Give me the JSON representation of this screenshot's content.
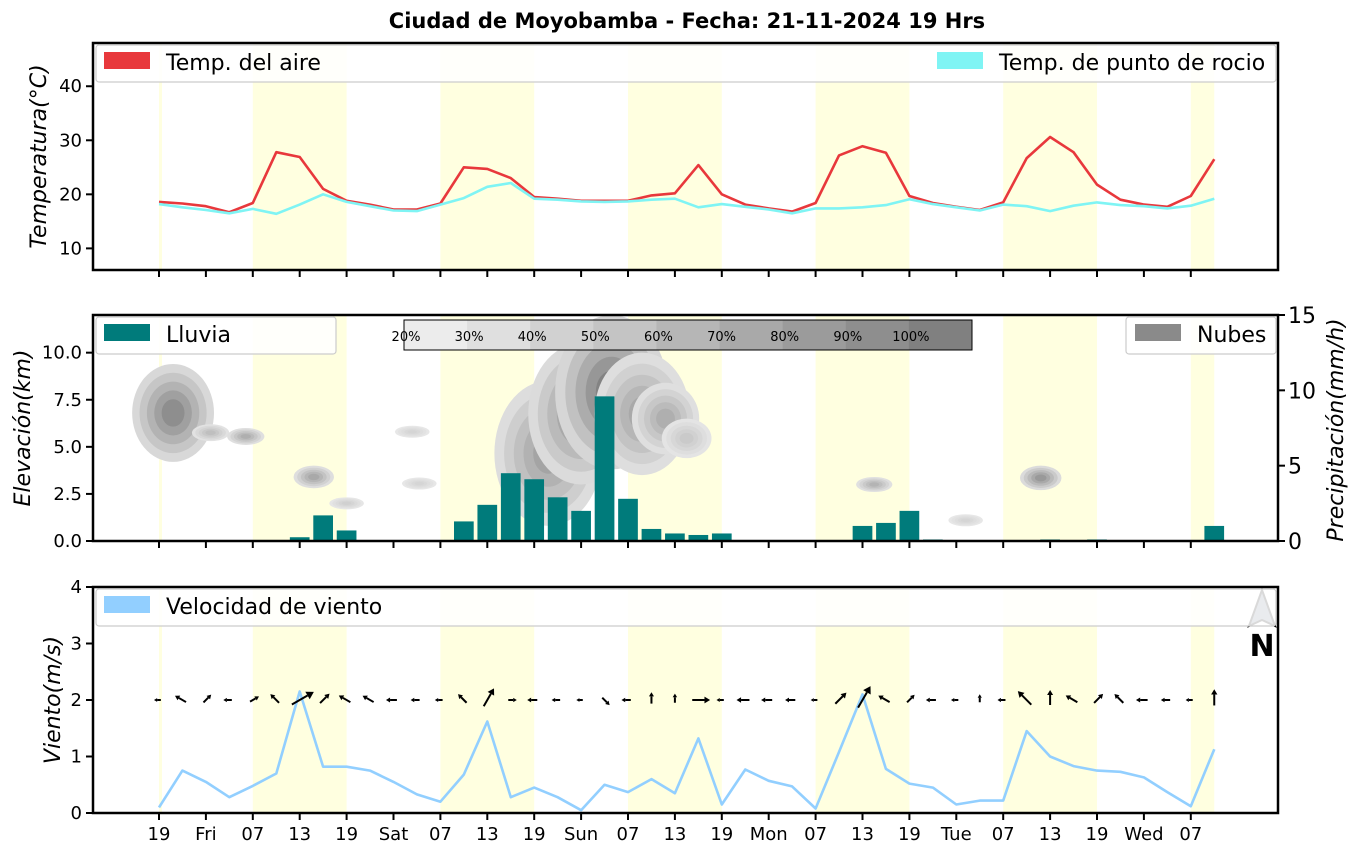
{
  "title": "Ciudad de Moyobamba   -   Fecha: 21-11-2024 19 Hrs",
  "x_tick_labels": [
    "19",
    "Fri",
    "07",
    "13",
    "19",
    "Sat",
    "07",
    "13",
    "19",
    "Sun",
    "07",
    "13",
    "19",
    "Mon",
    "07",
    "13",
    "19",
    "Tue",
    "07",
    "13",
    "19",
    "Wed",
    "07"
  ],
  "colors": {
    "air_temp": "#e8383c",
    "dew_point": "#7ff4f4",
    "rain": "#007b7b",
    "clouds": "#8a8a8a",
    "wind": "#92cfff",
    "daylight": "#ffffe0",
    "north_arrow": "#6f7a90"
  },
  "chart_data": [
    {
      "type": "line",
      "ylabel": "Temperatura(°C)",
      "ylim": [
        6,
        48
      ],
      "yticks": [
        10,
        20,
        30,
        40
      ],
      "legend_placement": "top",
      "x_step_hours": 3,
      "series": [
        {
          "name": "Temp. del aire",
          "values": [
            18.6,
            18.3,
            17.8,
            16.7,
            18.4,
            27.8,
            26.9,
            21.0,
            18.8,
            18.1,
            17.2,
            17.2,
            18.3,
            25.0,
            24.7,
            23.0,
            19.5,
            19.2,
            18.8,
            18.8,
            18.8,
            19.8,
            20.2,
            25.4,
            20.0,
            18.1,
            17.4,
            16.8,
            18.4,
            27.2,
            28.9,
            27.7,
            19.7,
            18.4,
            17.7,
            17.1,
            18.5,
            26.7,
            30.6,
            27.8,
            21.8,
            19.0,
            18.1,
            17.7,
            19.7,
            26.5
          ]
        },
        {
          "name": "Temp. de punto de rocio",
          "values": [
            18.2,
            17.6,
            17.1,
            16.5,
            17.3,
            16.4,
            18.1,
            20.0,
            18.6,
            17.8,
            17.0,
            16.9,
            18.1,
            19.3,
            21.4,
            22.1,
            19.2,
            19.0,
            18.7,
            18.6,
            18.7,
            19.0,
            19.2,
            17.6,
            18.2,
            17.7,
            17.2,
            16.5,
            17.4,
            17.4,
            17.6,
            18.0,
            19.1,
            18.2,
            17.6,
            17.0,
            18.1,
            17.8,
            16.9,
            17.9,
            18.5,
            18.0,
            17.8,
            17.4,
            17.9,
            19.2
          ]
        }
      ]
    },
    {
      "type": "bar",
      "ylabel": "Elevación(km)",
      "ylabel_right": "Precipitación(mm/h)",
      "ylim": [
        0,
        12
      ],
      "yticks": [
        0.0,
        2.5,
        5.0,
        7.5,
        10.0
      ],
      "ytick_labels": [
        "0.0",
        "2.5",
        "5.0",
        "7.5",
        "10.0"
      ],
      "ylim_right": [
        0,
        15
      ],
      "yticks_right": [
        0,
        5,
        10,
        15
      ],
      "x_step_hours": 3,
      "colorbar_labels": [
        "20%",
        "30%",
        "40%",
        "50%",
        "60%",
        "70%",
        "80%",
        "90%",
        "100%"
      ],
      "series": [
        {
          "name": "Lluvia",
          "values": [
            0.05,
            0.05,
            0.05,
            0.0,
            0.0,
            0.0,
            0.25,
            1.7,
            0.7,
            0.0,
            0.05,
            0.05,
            0.05,
            1.3,
            2.4,
            4.5,
            4.1,
            2.9,
            2.0,
            9.6,
            2.8,
            0.8,
            0.5,
            0.4,
            0.5,
            0.05,
            0.05,
            0.0,
            0.0,
            0.0,
            1.0,
            1.2,
            2.0,
            0.1,
            0.0,
            0.05,
            0.05,
            0.05,
            0.1,
            0.05,
            0.1,
            0.05,
            0.0,
            0.0,
            0.0,
            1.0
          ]
        }
      ],
      "clouds": {
        "name": "Nubes",
        "blobs": [
          {
            "x_index": 0.6,
            "top_km": 9.4,
            "bottom_km": 4.2,
            "cover": 0.85
          },
          {
            "x_index": 2.2,
            "top_km": 6.2,
            "bottom_km": 5.3,
            "cover": 0.4
          },
          {
            "x_index": 3.7,
            "top_km": 6.0,
            "bottom_km": 5.1,
            "cover": 0.55
          },
          {
            "x_index": 6.6,
            "top_km": 4.0,
            "bottom_km": 2.8,
            "cover": 0.6
          },
          {
            "x_index": 8.0,
            "top_km": 2.2,
            "bottom_km": 1.8,
            "cover": 0.25
          },
          {
            "x_index": 10.8,
            "top_km": 6.0,
            "bottom_km": 5.6,
            "cover": 0.2
          },
          {
            "x_index": 11.1,
            "top_km": 3.3,
            "bottom_km": 2.8,
            "cover": 0.2
          },
          {
            "x_index": 16.6,
            "top_km": 8.5,
            "bottom_km": 0.8,
            "cover": 0.65
          },
          {
            "x_index": 18.0,
            "top_km": 10.5,
            "bottom_km": 3.0,
            "cover": 0.75
          },
          {
            "x_index": 19.3,
            "top_km": 12.0,
            "bottom_km": 3.8,
            "cover": 0.95
          },
          {
            "x_index": 20.6,
            "top_km": 10.0,
            "bottom_km": 3.5,
            "cover": 0.6
          },
          {
            "x_index": 21.6,
            "top_km": 8.4,
            "bottom_km": 4.6,
            "cover": 0.55
          },
          {
            "x_index": 22.5,
            "top_km": 6.5,
            "bottom_km": 4.4,
            "cover": 0.3
          },
          {
            "x_index": 30.5,
            "top_km": 3.4,
            "bottom_km": 2.6,
            "cover": 0.5
          },
          {
            "x_index": 34.4,
            "top_km": 1.3,
            "bottom_km": 0.9,
            "cover": 0.2
          },
          {
            "x_index": 37.6,
            "top_km": 4.0,
            "bottom_km": 2.7,
            "cover": 0.75
          }
        ]
      }
    },
    {
      "type": "line",
      "ylabel": "Viento(m/s)",
      "ylim": [
        0,
        4
      ],
      "yticks": [
        0,
        1,
        2,
        3,
        4
      ],
      "x_step_hours": 3,
      "series": [
        {
          "name": "Velocidad de viento",
          "values": [
            0.1,
            0.75,
            0.55,
            0.28,
            0.48,
            0.7,
            2.15,
            0.82,
            0.82,
            0.75,
            0.55,
            0.33,
            0.2,
            0.68,
            1.62,
            0.28,
            0.45,
            0.28,
            0.05,
            0.5,
            0.37,
            0.6,
            0.35,
            1.32,
            0.15,
            0.77,
            0.57,
            0.47,
            0.08,
            1.08,
            2.1,
            0.78,
            0.52,
            0.45,
            0.15,
            0.22,
            0.22,
            1.45,
            1.0,
            0.83,
            0.75,
            0.73,
            0.63,
            0.37,
            0.12,
            1.13
          ]
        }
      ],
      "wind_direction_deg": [
        270,
        300,
        45,
        270,
        60,
        315,
        60,
        45,
        300,
        300,
        270,
        270,
        270,
        315,
        30,
        90,
        270,
        270,
        270,
        135,
        270,
        0,
        0,
        90,
        270,
        270,
        270,
        270,
        270,
        45,
        30,
        300,
        45,
        270,
        270,
        0,
        270,
        315,
        0,
        300,
        45,
        315,
        270,
        270,
        270,
        0
      ],
      "north_label": "N"
    }
  ]
}
